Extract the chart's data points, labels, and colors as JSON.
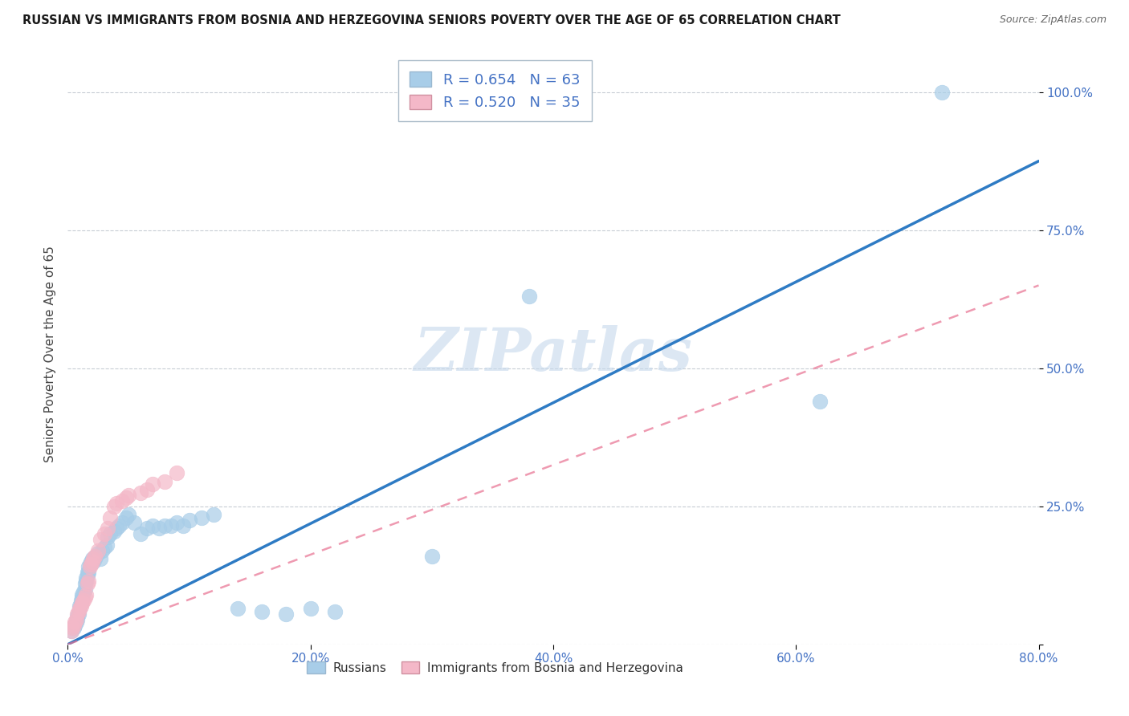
{
  "title": "RUSSIAN VS IMMIGRANTS FROM BOSNIA AND HERZEGOVINA SENIORS POVERTY OVER THE AGE OF 65 CORRELATION CHART",
  "source": "Source: ZipAtlas.com",
  "ylabel": "Seniors Poverty Over the Age of 65",
  "xlim": [
    0,
    0.8
  ],
  "ylim": [
    0,
    1.05
  ],
  "r_russian": 0.654,
  "n_russian": 63,
  "r_bosnia": 0.52,
  "n_bosnia": 35,
  "russian_color": "#A8CDE8",
  "bosnia_color": "#F4B8C8",
  "russian_line_color": "#2E7BC4",
  "bosnia_line_color": "#E87090",
  "watermark_color": "#C5D8EC",
  "tick_color": "#4472C4",
  "grid_color": "#C8CDD4",
  "legend_label_russian": "Russians",
  "legend_label_bosnia": "Immigrants from Bosnia and Herzegovina",
  "russians_x": [
    0.003,
    0.005,
    0.006,
    0.007,
    0.008,
    0.008,
    0.009,
    0.009,
    0.01,
    0.01,
    0.011,
    0.011,
    0.012,
    0.012,
    0.013,
    0.014,
    0.014,
    0.015,
    0.015,
    0.016,
    0.016,
    0.017,
    0.017,
    0.018,
    0.019,
    0.02,
    0.021,
    0.022,
    0.023,
    0.025,
    0.027,
    0.028,
    0.03,
    0.032,
    0.033,
    0.035,
    0.038,
    0.04,
    0.042,
    0.045,
    0.048,
    0.05,
    0.055,
    0.06,
    0.065,
    0.07,
    0.075,
    0.08,
    0.085,
    0.09,
    0.095,
    0.1,
    0.11,
    0.12,
    0.14,
    0.16,
    0.18,
    0.2,
    0.22,
    0.3,
    0.38,
    0.62,
    0.72
  ],
  "russians_y": [
    0.025,
    0.03,
    0.035,
    0.04,
    0.045,
    0.05,
    0.055,
    0.06,
    0.065,
    0.07,
    0.075,
    0.08,
    0.085,
    0.09,
    0.095,
    0.1,
    0.11,
    0.115,
    0.12,
    0.125,
    0.13,
    0.13,
    0.14,
    0.145,
    0.15,
    0.155,
    0.15,
    0.155,
    0.16,
    0.165,
    0.155,
    0.17,
    0.175,
    0.18,
    0.195,
    0.2,
    0.205,
    0.21,
    0.215,
    0.22,
    0.23,
    0.235,
    0.22,
    0.2,
    0.21,
    0.215,
    0.21,
    0.215,
    0.215,
    0.22,
    0.215,
    0.225,
    0.23,
    0.235,
    0.065,
    0.06,
    0.055,
    0.065,
    0.06,
    0.16,
    0.63,
    0.44,
    1.0
  ],
  "bosnia_x": [
    0.003,
    0.004,
    0.005,
    0.006,
    0.007,
    0.008,
    0.009,
    0.01,
    0.011,
    0.012,
    0.013,
    0.014,
    0.015,
    0.016,
    0.017,
    0.018,
    0.019,
    0.02,
    0.021,
    0.022,
    0.025,
    0.027,
    0.03,
    0.033,
    0.035,
    0.038,
    0.04,
    0.045,
    0.048,
    0.05,
    0.06,
    0.065,
    0.07,
    0.08,
    0.09
  ],
  "bosnia_y": [
    0.025,
    0.03,
    0.035,
    0.04,
    0.045,
    0.055,
    0.06,
    0.065,
    0.07,
    0.075,
    0.08,
    0.085,
    0.09,
    0.11,
    0.115,
    0.14,
    0.145,
    0.15,
    0.155,
    0.16,
    0.17,
    0.19,
    0.2,
    0.21,
    0.23,
    0.25,
    0.255,
    0.26,
    0.265,
    0.27,
    0.275,
    0.28,
    0.29,
    0.295,
    0.31
  ],
  "russian_line_x": [
    0.0,
    0.8
  ],
  "russian_line_y": [
    0.0,
    0.875
  ],
  "bosnia_line_x": [
    0.0,
    0.8
  ],
  "bosnia_line_y": [
    0.0,
    0.65
  ]
}
